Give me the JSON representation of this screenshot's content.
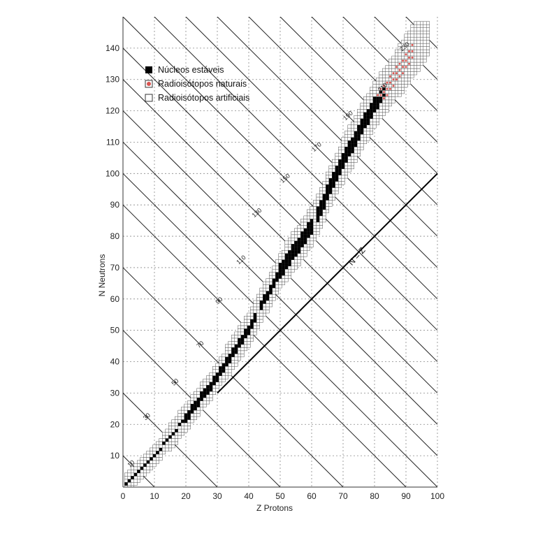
{
  "chart_data": {
    "type": "scatter",
    "xlabel": "Z   Protons",
    "ylabel": "N   Neutrons",
    "xlim": [
      0,
      100
    ],
    "ylim": [
      0,
      150
    ],
    "x_ticks": [
      0,
      10,
      20,
      30,
      40,
      50,
      60,
      70,
      80,
      90,
      100
    ],
    "y_ticks": [
      10,
      20,
      30,
      40,
      50,
      60,
      70,
      80,
      90,
      100,
      110,
      120,
      130,
      140
    ],
    "grid": true,
    "legend_position": "top-left",
    "legend": [
      {
        "label": "Núcleos estáveis",
        "marker": "filled-black-square"
      },
      {
        "label": "Radioisótopos naturais",
        "marker": "red-dot-square"
      },
      {
        "label": "Radioisótopos artificiais",
        "marker": "open-square"
      }
    ],
    "isobar_lines": {
      "mass_numbers": [
        10,
        30,
        50,
        70,
        90,
        110,
        130,
        150,
        170,
        190,
        210,
        230
      ],
      "labels": [
        "10",
        "30",
        "50",
        "70",
        "90",
        "110",
        "130",
        "150",
        "170",
        "190",
        "210",
        "230"
      ],
      "extra_lines_mass_numbers": [
        100,
        120,
        140,
        160,
        180,
        200,
        220,
        240,
        260,
        280
      ]
    },
    "reference_line": {
      "label": "N = Z",
      "slope": 1,
      "intercept": 0
    },
    "stable_valley": {
      "description_points_Z": [
        0,
        10,
        20,
        30,
        40,
        50,
        60,
        70,
        80,
        83
      ],
      "description_points_N": [
        0,
        10,
        22,
        35,
        50,
        69,
        83,
        104,
        122,
        126
      ]
    },
    "natural_radioisotope_region": {
      "Z_range": [
        81,
        92
      ],
      "N_range": [
        124,
        146
      ]
    },
    "artificial_band_width": 6
  },
  "colors": {
    "stable": "#000000",
    "natural": "#d9534f",
    "artificial_stroke": "#555555",
    "grid": "#888888",
    "lines": "#222222"
  }
}
